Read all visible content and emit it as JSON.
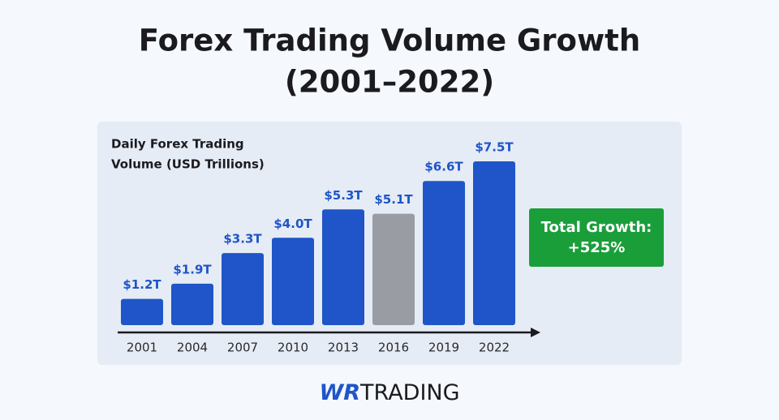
{
  "chart_data": {
    "type": "bar",
    "title": [
      "Forex Trading Volume Growth",
      "(2001–2022)"
    ],
    "y_label": [
      "Daily Forex Trading",
      "Volume (USD Trillions)"
    ],
    "categories": [
      "2001",
      "2004",
      "2007",
      "2010",
      "2013",
      "2016",
      "2019",
      "2022"
    ],
    "values": [
      1.2,
      1.9,
      3.3,
      4.0,
      5.3,
      5.1,
      6.6,
      7.5
    ],
    "value_labels": [
      "$1.2T",
      "$1.9T",
      "$3.3T",
      "$4.0T",
      "$5.3T",
      "$5.1T",
      "$6.6T",
      "$7.5T"
    ],
    "colors": [
      "#1f55c8",
      "#1f55c8",
      "#1f55c8",
      "#1f55c8",
      "#1f55c8",
      "#9a9ca3",
      "#1f55c8",
      "#1f55c8"
    ],
    "annotation": [
      "Total Growth:",
      "+525%"
    ]
  },
  "brand": {
    "mark": "WR",
    "name": "TRADING"
  }
}
